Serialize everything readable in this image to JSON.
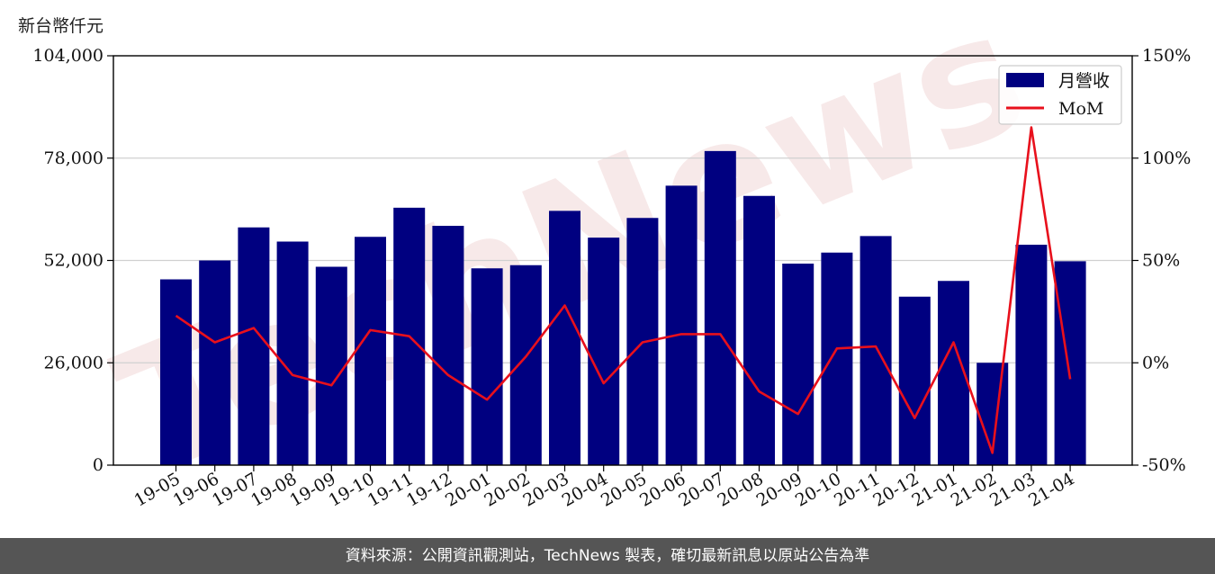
{
  "chart_data": {
    "type": "bar",
    "title": "",
    "y_unit_label": "新台幣仟元",
    "xlabel": "",
    "ylabel": "",
    "categories": [
      "19-05",
      "19-06",
      "19-07",
      "19-08",
      "19-09",
      "19-10",
      "19-11",
      "19-12",
      "20-01",
      "20-02",
      "20-03",
      "20-04",
      "20-05",
      "20-06",
      "20-07",
      "20-08",
      "20-09",
      "20-10",
      "20-11",
      "20-12",
      "21-01",
      "21-02",
      "21-03",
      "21-04"
    ],
    "series": [
      {
        "name": "月營收",
        "type": "bar",
        "axis": "left",
        "color": "#000080",
        "values": [
          47200,
          52000,
          60400,
          56800,
          50400,
          58000,
          65400,
          60800,
          50000,
          50800,
          64600,
          57800,
          62800,
          71000,
          79800,
          68400,
          51200,
          54000,
          58200,
          42800,
          46800,
          26000,
          56000,
          51800
        ]
      },
      {
        "name": "MoM",
        "type": "line",
        "axis": "right",
        "color": "#e8101c",
        "values": [
          23,
          10,
          17,
          -6,
          -11,
          16,
          13,
          -6,
          -18,
          3,
          28,
          -10,
          10,
          14,
          14,
          -14,
          -25,
          7,
          8,
          -27,
          10,
          -44,
          115,
          -8
        ]
      }
    ],
    "y_left": {
      "min": 0,
      "max": 104000,
      "ticks": [
        0,
        26000,
        52000,
        78000,
        104000
      ],
      "tick_labels": [
        "0",
        "26,000",
        "52,000",
        "78,000",
        "104,000"
      ]
    },
    "y_right": {
      "min": -50,
      "max": 150,
      "ticks": [
        -50,
        0,
        50,
        100,
        150
      ],
      "tick_labels": [
        "-50%",
        "0%",
        "50%",
        "100%",
        "150%"
      ]
    },
    "grid": true,
    "legend": "top-right"
  },
  "watermark": "TechNews",
  "footer": {
    "text": "資料來源：公開資訊觀測站，TechNews 製表，確切最新訊息以原站公告為準"
  }
}
